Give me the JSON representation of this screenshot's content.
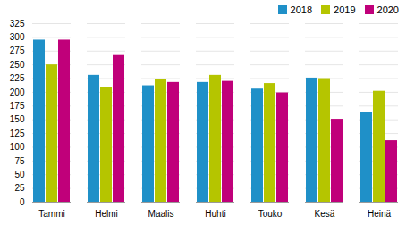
{
  "chart_data": {
    "type": "bar",
    "categories": [
      "Tammi",
      "Helmi",
      "Maalis",
      "Huhti",
      "Touko",
      "Kesä",
      "Heinä"
    ],
    "series": [
      {
        "name": "2018",
        "color": "#1f90c8",
        "values": [
          295,
          231,
          212,
          218,
          206,
          226,
          163
        ]
      },
      {
        "name": "2019",
        "color": "#b5c500",
        "values": [
          250,
          208,
          223,
          231,
          216,
          225,
          202
        ]
      },
      {
        "name": "2020",
        "color": "#c0007a",
        "values": [
          295,
          267,
          218,
          220,
          199,
          151,
          112
        ]
      }
    ],
    "ylim": [
      0,
      325
    ],
    "yticks": [
      0,
      25,
      50,
      75,
      100,
      125,
      150,
      175,
      200,
      225,
      250,
      275,
      300,
      325
    ],
    "grid": true,
    "legend": "upper right"
  }
}
